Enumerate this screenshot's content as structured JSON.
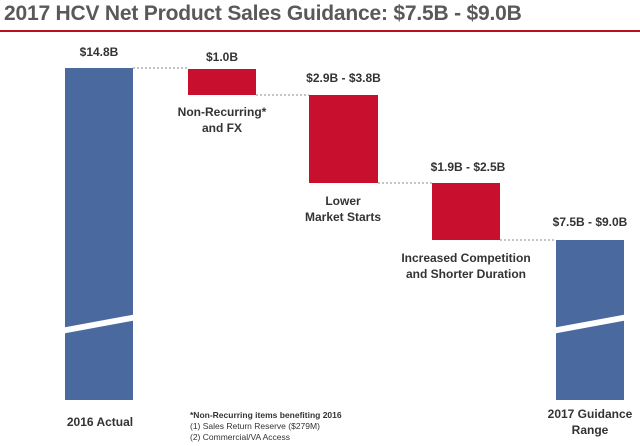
{
  "title": "2017 HCV Net Product Sales Guidance: $7.5B - $9.0B",
  "chart_data": {
    "type": "waterfall",
    "unit": "$B",
    "ylim": [
      0,
      14.8
    ],
    "bars": [
      {
        "name": "2016 Actual",
        "kind": "total",
        "value": 14.8,
        "value_label": "$14.8B",
        "label_lines": [
          "2016 Actual"
        ],
        "color": "#4a6a9f"
      },
      {
        "name": "Non-Recurring* and FX",
        "kind": "decrease",
        "low": 1.0,
        "high": 1.0,
        "value_label": "$1.0B",
        "label_lines": [
          "Non-Recurring*",
          "and FX"
        ],
        "color": "#c8102e"
      },
      {
        "name": "Lower Market Starts",
        "kind": "decrease",
        "low": 2.9,
        "high": 3.8,
        "value_label": "$2.9B - $3.8B",
        "label_lines": [
          "Lower",
          "Market Starts"
        ],
        "color": "#c8102e"
      },
      {
        "name": "Increased Competition and Shorter Duration",
        "kind": "decrease",
        "low": 1.9,
        "high": 2.5,
        "value_label": "$1.9B - $2.5B",
        "label_lines": [
          "Increased Competition",
          "and Shorter Duration"
        ],
        "color": "#c8102e"
      },
      {
        "name": "2017 Guidance Range",
        "kind": "total",
        "low": 7.5,
        "high": 9.0,
        "value": 9.0,
        "value_label": "$7.5B - $9.0B",
        "label_lines": [
          "2017 Guidance",
          "Range"
        ],
        "color": "#4a6a9f"
      }
    ]
  },
  "footnote": {
    "heading": "*Non-Recurring items benefiting 2016",
    "items": [
      "(1)  Sales Return Reserve ($279M)",
      "(2)  Commercial/VA Access"
    ]
  }
}
